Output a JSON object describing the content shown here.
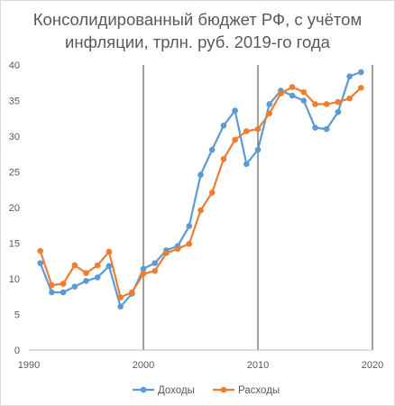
{
  "chart_data": {
    "type": "line",
    "title_line1": "Консолидированный бюджет РФ, с учётом",
    "title_line2": "инфляции, трлн. руб. 2019-го года",
    "x": [
      1991,
      1992,
      1993,
      1994,
      1995,
      1996,
      1997,
      1998,
      1999,
      2000,
      2001,
      2002,
      2003,
      2004,
      2005,
      2006,
      2007,
      2008,
      2009,
      2010,
      2011,
      2012,
      2013,
      2014,
      2015,
      2016,
      2017,
      2018,
      2019
    ],
    "series": [
      {
        "name": "Доходы",
        "color": "#5b9bd5",
        "values": [
          12.2,
          8.1,
          8.1,
          8.9,
          9.7,
          10.2,
          11.8,
          6.1,
          7.9,
          11.4,
          12.2,
          14.0,
          14.6,
          17.4,
          24.6,
          28.1,
          31.5,
          33.6,
          26.1,
          28.1,
          34.5,
          36.4,
          35.7,
          35.0,
          31.2,
          31.0,
          33.4,
          38.4,
          39.0
        ]
      },
      {
        "name": "Расходы",
        "color": "#ed7d31",
        "values": [
          13.9,
          9.1,
          9.3,
          11.9,
          10.8,
          11.9,
          13.8,
          7.4,
          8.1,
          10.7,
          11.1,
          13.6,
          14.2,
          14.9,
          19.6,
          22.1,
          26.8,
          29.5,
          30.7,
          31.0,
          33.2,
          36.0,
          36.9,
          36.2,
          34.5,
          34.5,
          34.8,
          35.3,
          36.8
        ]
      }
    ],
    "x_ticks": [
      1990,
      2000,
      2010,
      2020
    ],
    "y_ticks": [
      0,
      5,
      10,
      15,
      20,
      25,
      30,
      35,
      40
    ],
    "xlim": [
      1990,
      2020
    ],
    "ylim": [
      0,
      40
    ],
    "vertical_lines": [
      2000,
      2010,
      2020
    ],
    "legend_position": "bottom",
    "grid": false
  }
}
